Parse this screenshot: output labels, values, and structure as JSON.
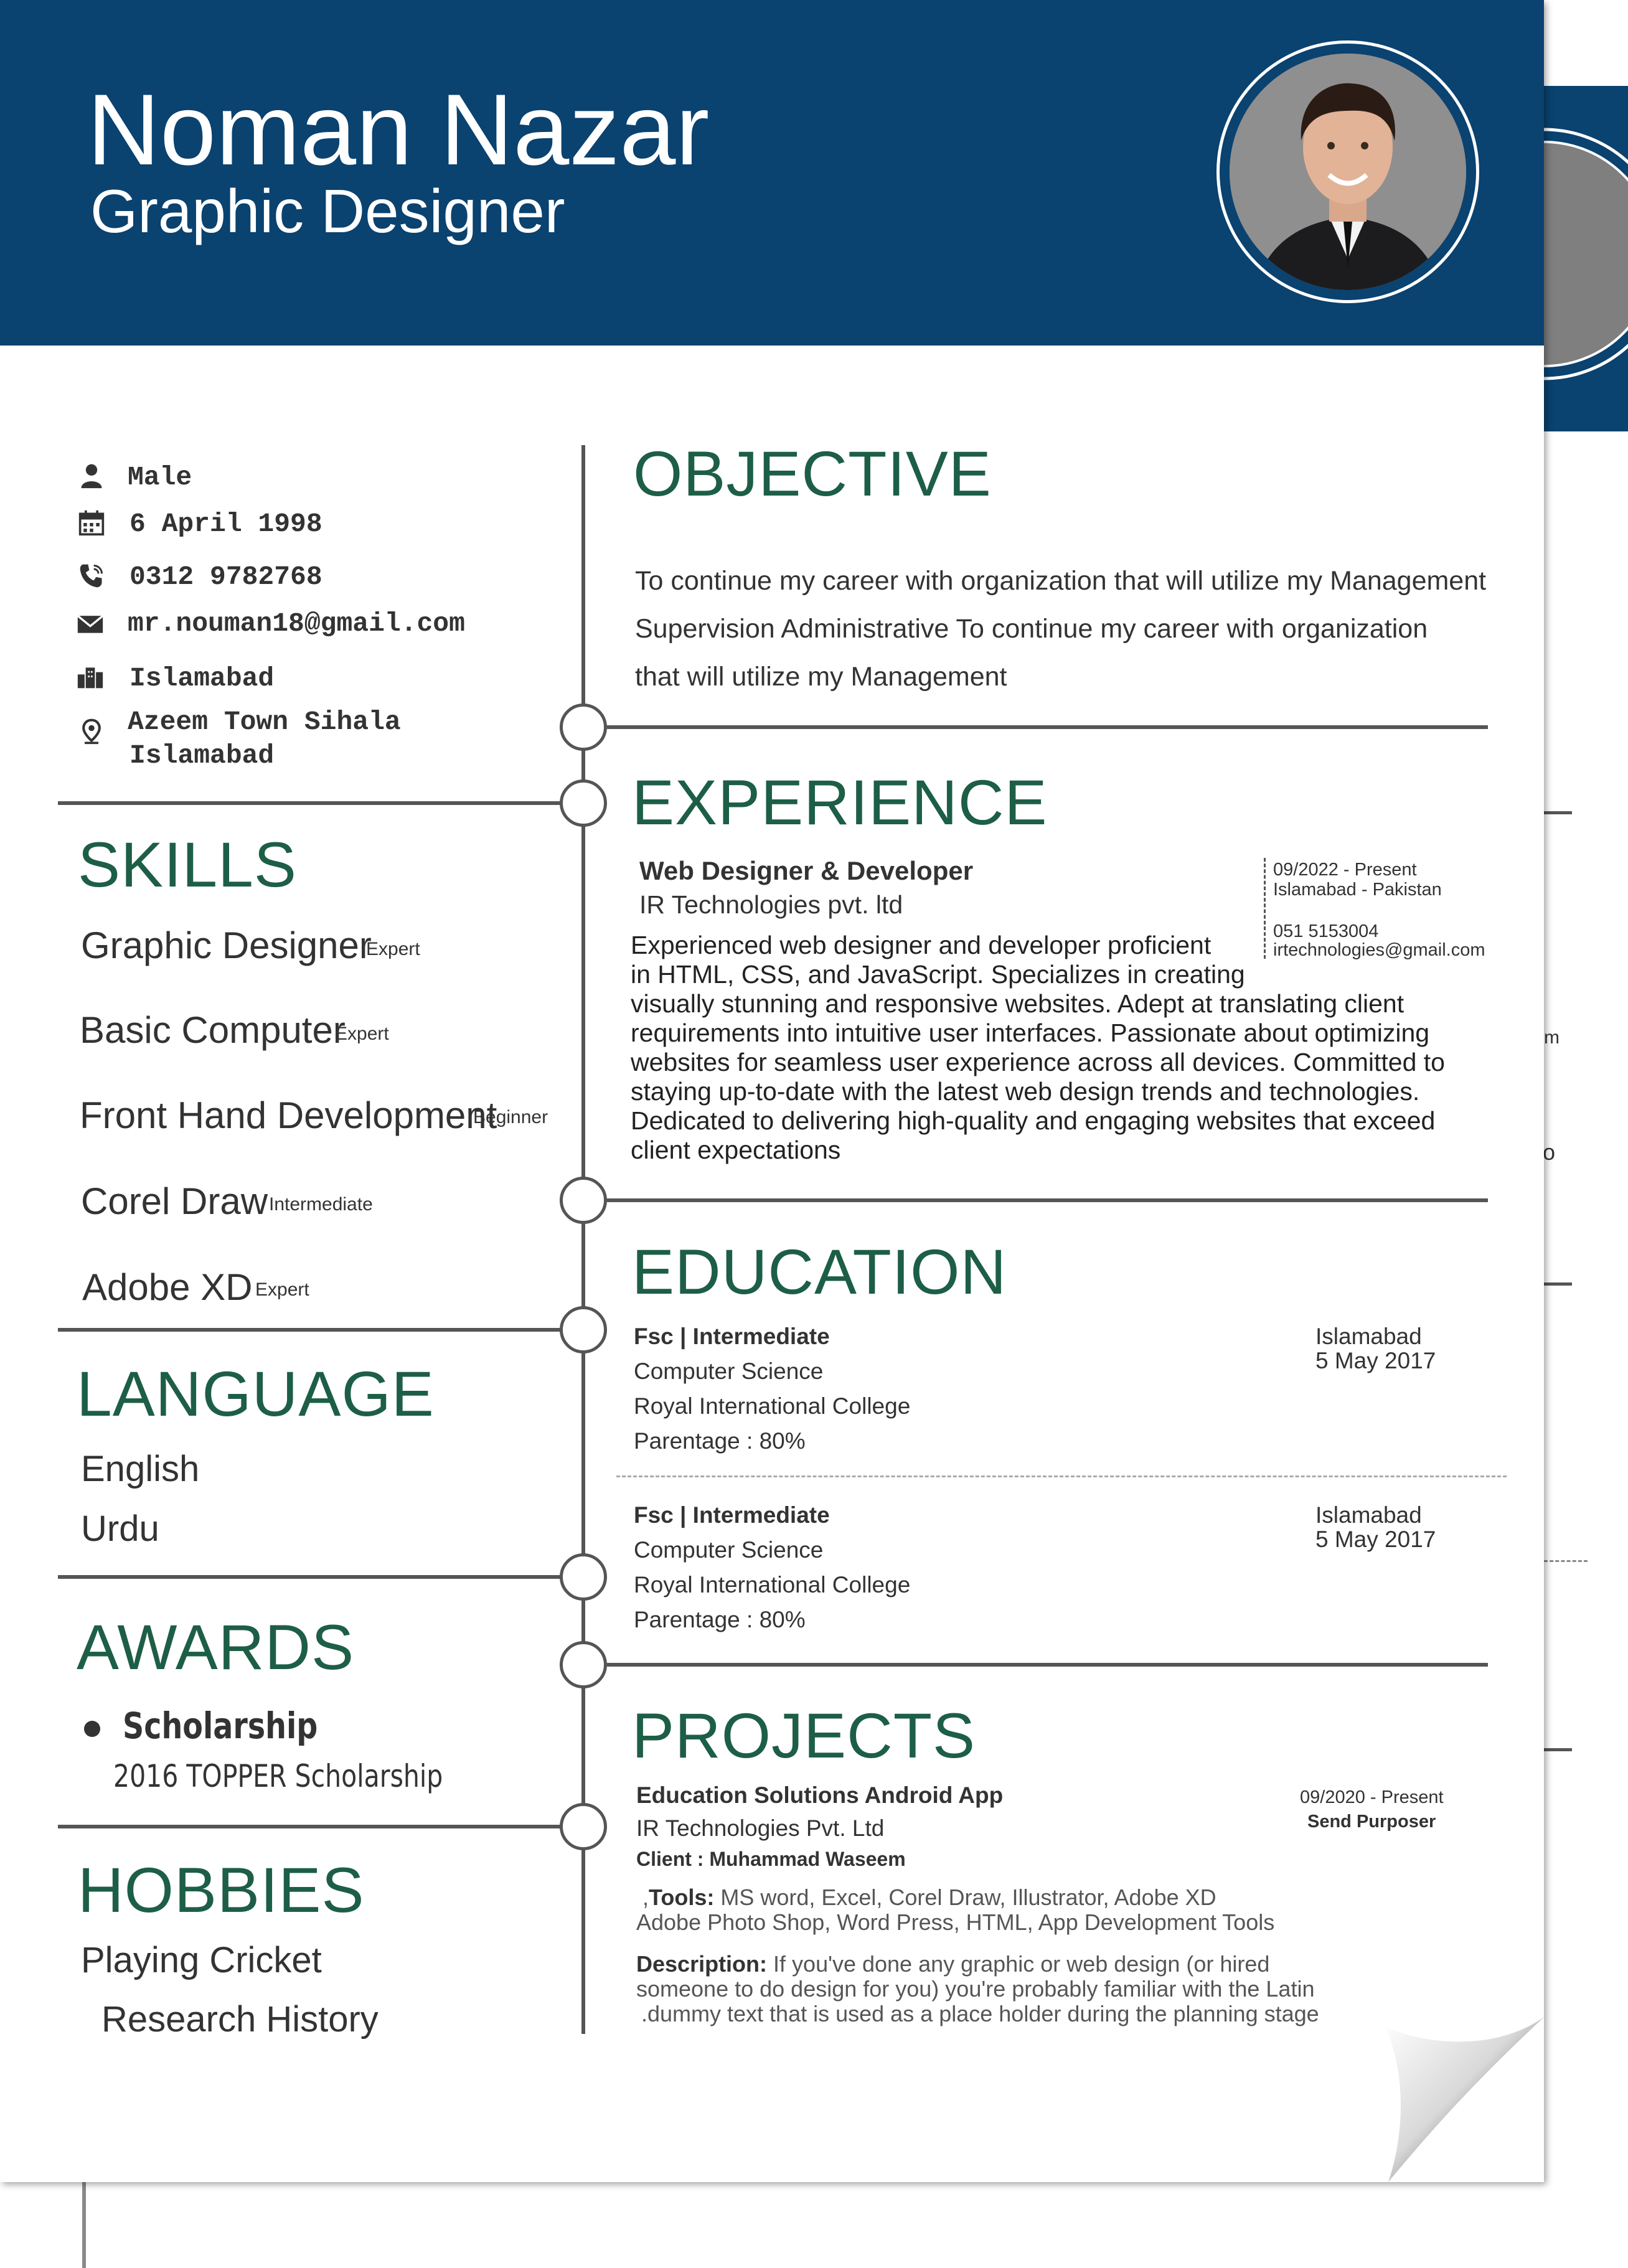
{
  "header": {
    "name": "Noman Nazar",
    "title": "Graphic Designer"
  },
  "contact": {
    "gender": "Male",
    "dob": "6 April 1998",
    "phone": "0312 9782768",
    "email": "mr.nouman18@gmail.com",
    "city": "Islamabad",
    "address_line1": "Azeem Town Sihala",
    "address_line2": "Islamabad"
  },
  "skills": {
    "heading": "SKILLS",
    "items": [
      {
        "name": "Graphic Designer",
        "level": "Expert"
      },
      {
        "name": "Basic Computer",
        "level": "Expert"
      },
      {
        "name": "Front Hand Development",
        "level": "Beginner"
      },
      {
        "name": "Corel Draw",
        "level": "Intermediate"
      },
      {
        "name": "Adobe XD",
        "level": "Expert"
      }
    ]
  },
  "language": {
    "heading": "LANGUAGE",
    "items": [
      "English",
      "Urdu"
    ]
  },
  "awards": {
    "heading": "AWARDS",
    "name": "Scholarship",
    "detail": "2016 TOPPER Scholarship"
  },
  "hobbies": {
    "heading": "HOBBIES",
    "items": [
      "Playing Cricket",
      "Research History"
    ]
  },
  "objective": {
    "heading": "OBJECTIVE",
    "lines": [
      "To continue my career with organization that will utilize my Management",
      "Supervision Administrative To continue my career with organization",
      "that will utilize my Management"
    ]
  },
  "experience": {
    "heading": "EXPERIENCE",
    "title": "Web Designer & Developer",
    "company": "IR Technologies pvt. ltd",
    "period": "09/2022 - Present",
    "location": "Islamabad - Pakistan",
    "phone": "051 5153004",
    "email": "irtechnologies@gmail.com",
    "description_lines": [
      "Experienced web designer and developer proficient",
      "in HTML, CSS, and JavaScript. Specializes in creating",
      "visually stunning and responsive websites. Adept at translating client",
      "requirements into intuitive user interfaces. Passionate about optimizing",
      "websites for seamless user experience across all devices. Committed to",
      "staying up-to-date with the latest web design trends and technologies.",
      "Dedicated to delivering high-quality and engaging websites that exceed",
      " client expectations"
    ]
  },
  "education": {
    "heading": "EDUCATION",
    "entries": [
      {
        "title": "Fsc | Intermediate",
        "field": "Computer Science",
        "institution": "Royal International College",
        "score": "Parentage : 80%",
        "city": "Islamabad",
        "date": "5 May 2017"
      },
      {
        "title": "Fsc | Intermediate",
        "field": "Computer Science",
        "institution": "Royal International College",
        "score": "Parentage : 80%",
        "city": "Islamabad",
        "date": "5 May 2017"
      }
    ]
  },
  "projects": {
    "heading": "PROJECTS",
    "title": "Education Solutions Android App",
    "company": "IR Technologies Pvt. Ltd",
    "client": "Client : Muhammad Waseem",
    "period": "09/2020 - Present",
    "role": "Send Purposer",
    "tools_label": "Tools:",
    "tools_line1": "MS word, Excel, Corel Draw, Illustrator, Adobe XD",
    "tools_prefix": ",",
    "tools_line2": "Adobe Photo Shop, Word Press, HTML, App Development Tools",
    "desc_label": "Description:",
    "desc_line1": "If you've done any graphic or web design (or hired",
    "desc_line2": "someone to do design for you) you're probably familiar with the Latin",
    "desc_line3": ".dummy text that is used as a place holder during the planning stage"
  },
  "back_page": {
    "fragment_1": "m",
    "fragment_2": "o"
  },
  "colors": {
    "header_bg": "#0a4270",
    "heading_green": "#1d5e46",
    "line_gray": "#555555"
  }
}
